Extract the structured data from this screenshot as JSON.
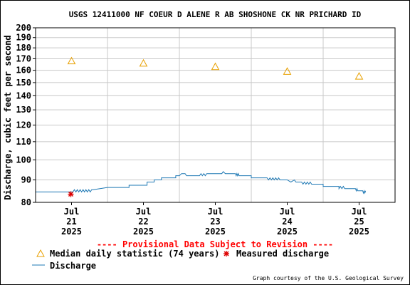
{
  "chart_data": {
    "type": "line",
    "title": "USGS 12411000 NF COEUR D ALENE R AB SHOSHONE CK NR PRICHARD ID",
    "ylabel": "Discharge, cubic feet per second",
    "ylim": [
      80,
      200
    ],
    "y_scale": "log",
    "y_ticks": [
      80,
      90,
      100,
      110,
      120,
      130,
      140,
      150,
      160,
      170,
      180,
      190,
      200
    ],
    "x_range_days": [
      20.5,
      25.5
    ],
    "x_ticks": [
      {
        "day": 21,
        "month": "Jul",
        "date": "21",
        "year": "2025"
      },
      {
        "day": 22,
        "month": "Jul",
        "date": "22",
        "year": "2025"
      },
      {
        "day": 23,
        "month": "Jul",
        "date": "23",
        "year": "2025"
      },
      {
        "day": 24,
        "month": "Jul",
        "date": "24",
        "year": "2025"
      },
      {
        "day": 25,
        "month": "Jul",
        "date": "25",
        "year": "2025"
      }
    ],
    "grid": true,
    "series": [
      {
        "name": "Discharge",
        "color": "#1e78b4",
        "style": "line",
        "points": [
          [
            20.5,
            84.5
          ],
          [
            21.02,
            84.5
          ],
          [
            21.04,
            85.5
          ],
          [
            21.06,
            84.5
          ],
          [
            21.08,
            85.5
          ],
          [
            21.1,
            84.5
          ],
          [
            21.12,
            85.5
          ],
          [
            21.14,
            84.5
          ],
          [
            21.16,
            85.5
          ],
          [
            21.18,
            84.5
          ],
          [
            21.2,
            85.5
          ],
          [
            21.22,
            84.5
          ],
          [
            21.24,
            85.5
          ],
          [
            21.26,
            84.5
          ],
          [
            21.28,
            85.5
          ],
          [
            21.3,
            85.5
          ],
          [
            21.5,
            86.5
          ],
          [
            21.8,
            86.5
          ],
          [
            21.8,
            87.5
          ],
          [
            22.05,
            87.5
          ],
          [
            22.05,
            89.0
          ],
          [
            22.15,
            89.0
          ],
          [
            22.15,
            90.0
          ],
          [
            22.25,
            90.0
          ],
          [
            22.25,
            91.0
          ],
          [
            22.45,
            91.0
          ],
          [
            22.45,
            92.0
          ],
          [
            22.5,
            92.0
          ],
          [
            22.53,
            93.0
          ],
          [
            22.58,
            93.0
          ],
          [
            22.6,
            92.0
          ],
          [
            22.78,
            92.0
          ],
          [
            22.8,
            93.0
          ],
          [
            22.82,
            92.0
          ],
          [
            22.84,
            93.0
          ],
          [
            22.86,
            92.0
          ],
          [
            22.88,
            93.0
          ],
          [
            23.0,
            93.0
          ],
          [
            23.09,
            93.0
          ],
          [
            23.11,
            94.0
          ],
          [
            23.14,
            93.0
          ],
          [
            23.28,
            93.0
          ],
          [
            23.29,
            92.0
          ],
          [
            23.3,
            93.0
          ],
          [
            23.31,
            92.0
          ],
          [
            23.32,
            93.0
          ],
          [
            23.33,
            92.0
          ],
          [
            23.5,
            92.0
          ],
          [
            23.5,
            91.0
          ],
          [
            23.72,
            91.0
          ],
          [
            23.74,
            90.0
          ],
          [
            23.76,
            91.0
          ],
          [
            23.78,
            90.0
          ],
          [
            23.8,
            91.0
          ],
          [
            23.82,
            90.0
          ],
          [
            23.84,
            91.0
          ],
          [
            23.86,
            90.0
          ],
          [
            23.88,
            91.0
          ],
          [
            23.9,
            90.0
          ],
          [
            24.0,
            90.0
          ],
          [
            24.05,
            89.0
          ],
          [
            24.1,
            90.0
          ],
          [
            24.12,
            89.0
          ],
          [
            24.2,
            89.0
          ],
          [
            24.22,
            88.0
          ],
          [
            24.24,
            89.0
          ],
          [
            24.26,
            88.0
          ],
          [
            24.28,
            89.0
          ],
          [
            24.3,
            88.0
          ],
          [
            24.32,
            89.0
          ],
          [
            24.34,
            88.0
          ],
          [
            24.5,
            88.0
          ],
          [
            24.5,
            87.0
          ],
          [
            24.72,
            87.0
          ],
          [
            24.72,
            86.0
          ],
          [
            24.74,
            87.0
          ],
          [
            24.76,
            86.0
          ],
          [
            24.78,
            87.0
          ],
          [
            24.8,
            86.0
          ],
          [
            24.95,
            86.0
          ],
          [
            24.96,
            85.0
          ],
          [
            24.97,
            86.0
          ],
          [
            24.98,
            85.0
          ],
          [
            25.05,
            85.0
          ],
          [
            25.06,
            84.0
          ],
          [
            25.07,
            85.0
          ],
          [
            25.08,
            84.0
          ],
          [
            25.09,
            85.0
          ]
        ]
      },
      {
        "name": "Median daily statistic (74 years)",
        "color": "#e8a000",
        "style": "triangle",
        "points": [
          [
            21,
            168
          ],
          [
            22,
            166
          ],
          [
            23,
            163
          ],
          [
            24,
            159
          ],
          [
            25,
            155
          ]
        ]
      },
      {
        "name": "Measured discharge",
        "color": "#dd0000",
        "style": "asterisk",
        "points": [
          [
            20.99,
            83.5
          ]
        ]
      }
    ],
    "notice": "---- Provisional Data Subject to Revision ----",
    "credit": "Graph courtesy of the U.S. Geological Survey"
  }
}
